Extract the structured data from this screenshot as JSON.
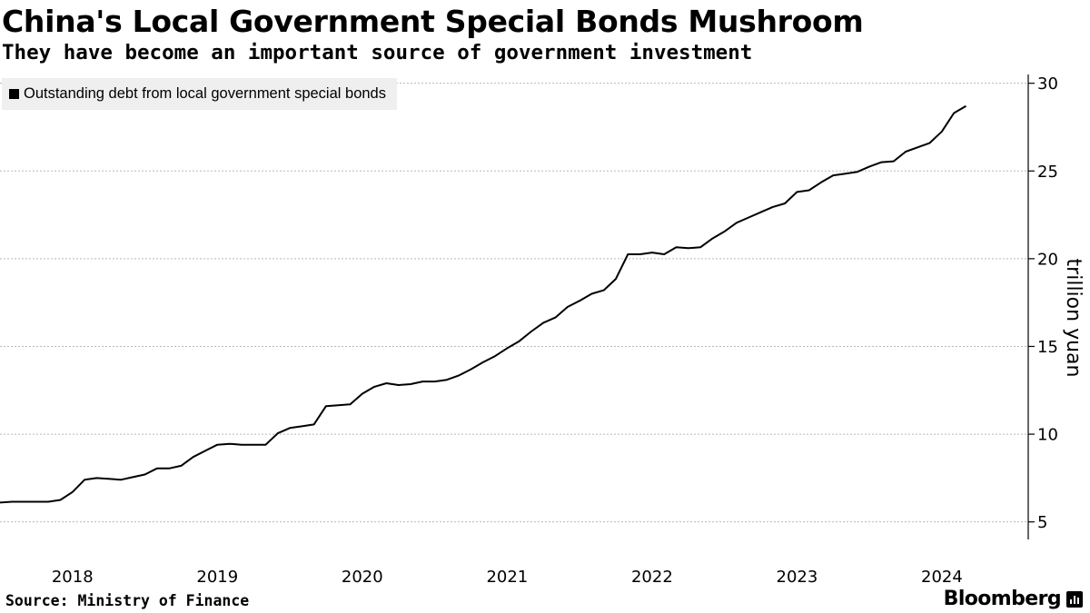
{
  "title": "China's Local Government Special Bonds Mushroom",
  "subtitle": "They have become an important source of government investment",
  "source": "Source: Ministry of Finance",
  "brand": "Bloomberg",
  "chart_data": {
    "type": "line",
    "title": "China's Local Government Special Bonds Mushroom",
    "subtitle": "They have become an important source of government investment",
    "ylabel": "trillion yuan",
    "xlabel": "",
    "ylim": [
      4,
      30.5
    ],
    "xlim": [
      "2017-07",
      "2024-08"
    ],
    "yticks": [
      5,
      10,
      15,
      20,
      25,
      30
    ],
    "xticks": [
      "2018",
      "2019",
      "2020",
      "2021",
      "2022",
      "2023",
      "2024"
    ],
    "grid": true,
    "axis_position": "right",
    "legend": "top-left",
    "series": [
      {
        "name": "Outstanding debt from local government special bonds",
        "color": "#000000",
        "points": [
          [
            "2017-07",
            6.1
          ],
          [
            "2017-08",
            6.15
          ],
          [
            "2017-09",
            6.15
          ],
          [
            "2017-10",
            6.15
          ],
          [
            "2017-11",
            6.15
          ],
          [
            "2017-12",
            6.25
          ],
          [
            "2018-01",
            6.7
          ],
          [
            "2018-02",
            7.4
          ],
          [
            "2018-03",
            7.5
          ],
          [
            "2018-04",
            7.45
          ],
          [
            "2018-05",
            7.4
          ],
          [
            "2018-06",
            7.55
          ],
          [
            "2018-07",
            7.7
          ],
          [
            "2018-08",
            8.05
          ],
          [
            "2018-09",
            8.05
          ],
          [
            "2018-10",
            8.2
          ],
          [
            "2018-11",
            8.7
          ],
          [
            "2018-12",
            9.05
          ],
          [
            "2019-01",
            9.4
          ],
          [
            "2019-02",
            9.45
          ],
          [
            "2019-03",
            9.4
          ],
          [
            "2019-04",
            9.4
          ],
          [
            "2019-05",
            9.4
          ],
          [
            "2019-06",
            10.05
          ],
          [
            "2019-07",
            10.35
          ],
          [
            "2019-08",
            10.45
          ],
          [
            "2019-09",
            10.55
          ],
          [
            "2019-10",
            11.6
          ],
          [
            "2019-11",
            11.65
          ],
          [
            "2019-12",
            11.7
          ],
          [
            "2020-01",
            12.3
          ],
          [
            "2020-02",
            12.7
          ],
          [
            "2020-03",
            12.9
          ],
          [
            "2020-04",
            12.8
          ],
          [
            "2020-05",
            12.85
          ],
          [
            "2020-06",
            13.0
          ],
          [
            "2020-07",
            13.0
          ],
          [
            "2020-08",
            13.1
          ],
          [
            "2020-09",
            13.35
          ],
          [
            "2020-10",
            13.7
          ],
          [
            "2020-11",
            14.1
          ],
          [
            "2020-12",
            14.45
          ],
          [
            "2021-01",
            14.9
          ],
          [
            "2021-02",
            15.3
          ],
          [
            "2021-03",
            15.85
          ],
          [
            "2021-04",
            16.35
          ],
          [
            "2021-05",
            16.65
          ],
          [
            "2021-06",
            17.25
          ],
          [
            "2021-07",
            17.6
          ],
          [
            "2021-08",
            18.0
          ],
          [
            "2021-09",
            18.2
          ],
          [
            "2021-10",
            18.85
          ],
          [
            "2021-11",
            20.25
          ],
          [
            "2021-12",
            20.25
          ],
          [
            "2022-01",
            20.35
          ],
          [
            "2022-02",
            20.25
          ],
          [
            "2022-03",
            20.65
          ],
          [
            "2022-04",
            20.6
          ],
          [
            "2022-05",
            20.65
          ],
          [
            "2022-06",
            21.15
          ],
          [
            "2022-07",
            21.55
          ],
          [
            "2022-08",
            22.05
          ],
          [
            "2022-09",
            22.35
          ],
          [
            "2022-10",
            22.65
          ],
          [
            "2022-11",
            22.95
          ],
          [
            "2022-12",
            23.15
          ],
          [
            "2023-01",
            23.8
          ],
          [
            "2023-02",
            23.9
          ],
          [
            "2023-03",
            24.35
          ],
          [
            "2023-04",
            24.75
          ],
          [
            "2023-05",
            24.85
          ],
          [
            "2023-06",
            24.95
          ],
          [
            "2023-07",
            25.25
          ],
          [
            "2023-08",
            25.5
          ],
          [
            "2023-09",
            25.55
          ],
          [
            "2023-10",
            26.1
          ],
          [
            "2023-11",
            26.35
          ],
          [
            "2023-12",
            26.6
          ],
          [
            "2024-01",
            27.25
          ],
          [
            "2024-02",
            28.3
          ],
          [
            "2024-03",
            28.7
          ]
        ]
      }
    ]
  }
}
